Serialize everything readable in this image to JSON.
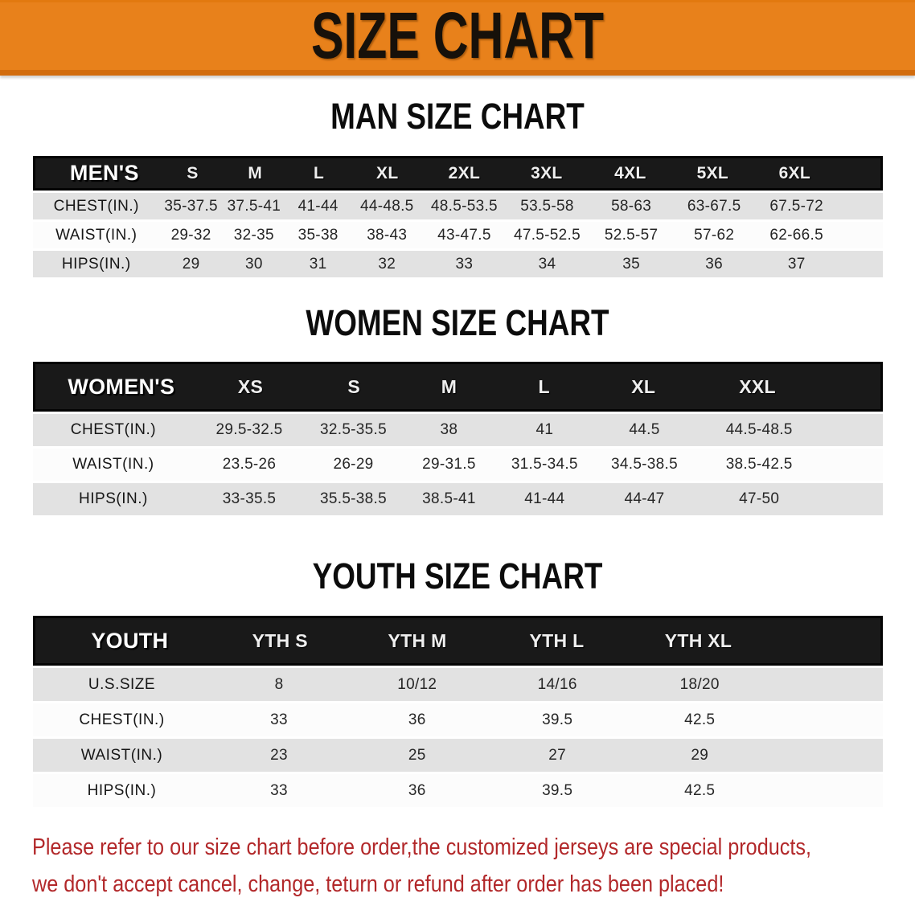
{
  "banner": {
    "title": "SIZE CHART"
  },
  "colors": {
    "banner_orange": "#e8811b",
    "banner_edge": "#d26c0e",
    "header_bar_black": "#191919",
    "row_gray": "#e2e2e2",
    "row_white": "#fcfcfc",
    "notice_red": "#b2282a"
  },
  "sections": [
    {
      "id": "men",
      "heading": "MAN SIZE CHART",
      "columns": [
        "MEN'S",
        "S",
        "M",
        "L",
        "XL",
        "2XL",
        "3XL",
        "4XL",
        "5XL",
        "6XL"
      ],
      "rows": [
        {
          "label": "CHEST(IN.)",
          "values": [
            "35-37.5",
            "37.5-41",
            "41-44",
            "44-48.5",
            "48.5-53.5",
            "53.5-58",
            "58-63",
            "63-67.5",
            "67.5-72"
          ]
        },
        {
          "label": "WAIST(IN.)",
          "values": [
            "29-32",
            "32-35",
            "35-38",
            "38-43",
            "43-47.5",
            "47.5-52.5",
            "52.5-57",
            "57-62",
            "62-66.5"
          ]
        },
        {
          "label": "HIPS(IN.)",
          "values": [
            "29",
            "30",
            "31",
            "32",
            "33",
            "34",
            "35",
            "36",
            "37"
          ]
        }
      ]
    },
    {
      "id": "women",
      "heading": "WOMEN SIZE CHART",
      "columns": [
        "WOMEN'S",
        "XS",
        "S",
        "M",
        "L",
        "XL",
        "XXL"
      ],
      "rows": [
        {
          "label": "CHEST(IN.)",
          "values": [
            "29.5-32.5",
            "32.5-35.5",
            "38",
            "41",
            "44.5",
            "44.5-48.5"
          ]
        },
        {
          "label": "WAIST(IN.)",
          "values": [
            "23.5-26",
            "26-29",
            "29-31.5",
            "31.5-34.5",
            "34.5-38.5",
            "38.5-42.5"
          ]
        },
        {
          "label": "HIPS(IN.)",
          "values": [
            "33-35.5",
            "35.5-38.5",
            "38.5-41",
            "41-44",
            "44-47",
            "47-50"
          ]
        }
      ]
    },
    {
      "id": "youth",
      "heading": "YOUTH SIZE CHART",
      "columns": [
        "YOUTH",
        "YTH S",
        "YTH M",
        "YTH L",
        "YTH XL"
      ],
      "rows": [
        {
          "label": "U.S.SIZE",
          "values": [
            "8",
            "10/12",
            "14/16",
            "18/20"
          ]
        },
        {
          "label": "CHEST(IN.)",
          "values": [
            "33",
            "36",
            "39.5",
            "42.5"
          ]
        },
        {
          "label": "WAIST(IN.)",
          "values": [
            "23",
            "25",
            "27",
            "29"
          ]
        },
        {
          "label": "HIPS(IN.)",
          "values": [
            "33",
            "36",
            "39.5",
            "42.5"
          ]
        }
      ]
    }
  ],
  "notice": {
    "line1": "Please refer to our size chart before order,the customized jerseys are special products,",
    "line2": "we don't accept cancel, change, teturn or refund after order has been placed!"
  }
}
